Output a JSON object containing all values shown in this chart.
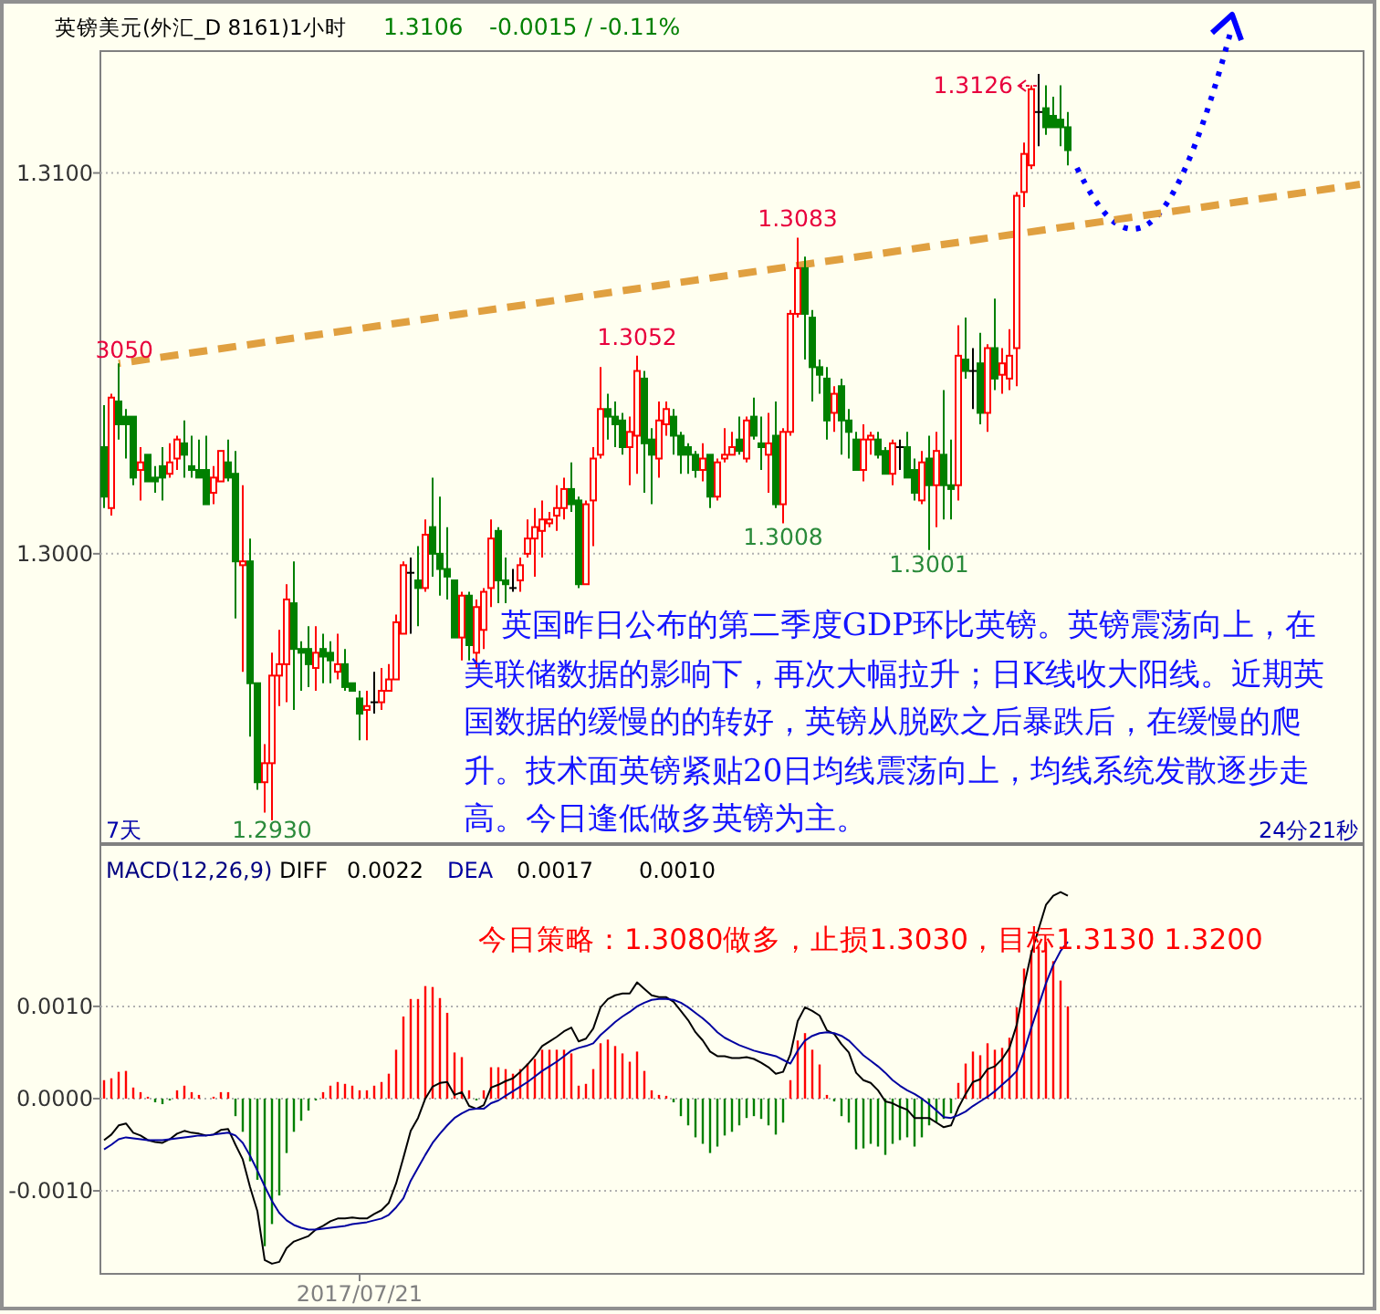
{
  "chart_data": [
    {
      "type": "candlestick",
      "title": "英镑美元(外汇_D 8161)1小时",
      "categories": [
        null,
        null,
        null,
        null,
        null,
        null,
        null,
        null,
        null,
        null,
        null,
        null,
        null,
        null,
        null,
        null,
        null,
        null,
        null,
        null,
        null,
        null,
        null,
        null,
        null,
        null,
        null,
        null,
        null,
        null,
        null,
        null,
        null,
        null,
        null,
        null,
        null,
        null,
        null,
        null,
        null,
        null,
        null,
        null,
        null,
        null,
        null,
        null,
        null,
        null,
        null,
        null,
        null,
        null,
        null,
        null,
        null,
        null,
        null,
        null,
        null,
        null,
        null,
        null,
        null,
        null,
        null,
        null,
        null,
        null,
        null,
        null,
        null,
        null,
        null,
        null,
        null,
        null,
        null,
        null,
        null,
        null,
        null,
        null,
        null,
        null,
        null,
        null,
        null,
        null,
        null,
        null,
        null,
        null,
        null,
        null,
        null,
        null,
        null,
        null,
        null,
        null,
        null,
        null,
        null,
        null,
        null,
        null,
        null,
        null,
        null,
        null,
        null,
        null,
        null,
        null,
        null,
        null,
        null,
        null,
        null,
        null,
        null,
        null,
        null,
        null,
        null,
        null,
        null,
        null,
        null,
        null,
        null,
        null,
        null,
        null,
        null,
        null,
        null,
        null,
        null,
        null,
        null,
        null,
        null,
        null,
        null,
        null,
        null,
        null,
        null,
        null,
        null,
        null,
        null,
        null,
        null,
        null,
        null,
        null,
        null,
        null,
        null,
        null,
        null,
        null,
        null,
        null,
        null,
        null,
        null,
        null,
        null
      ],
      "ohlc": [
        [
          1.3028,
          1.3039,
          1.3012,
          1.3015
        ],
        [
          1.3012,
          1.3042,
          1.301,
          1.3041
        ],
        [
          1.304,
          1.305,
          1.303,
          1.3034
        ],
        [
          1.3036,
          1.3038,
          1.3025,
          1.3034
        ],
        [
          1.3036,
          1.3036,
          1.3018,
          1.302
        ],
        [
          1.3022,
          1.3028,
          1.3014,
          1.3024
        ],
        [
          1.3026,
          1.3026,
          1.3019,
          1.3019
        ],
        [
          1.302,
          1.3023,
          1.3016,
          1.3019
        ],
        [
          1.3023,
          1.3028,
          1.3014,
          1.302
        ],
        [
          1.3021,
          1.3029,
          1.302,
          1.3024
        ],
        [
          1.3025,
          1.3031,
          1.3022,
          1.303
        ],
        [
          1.3029,
          1.3035,
          1.302,
          1.3026
        ],
        [
          1.3023,
          1.3031,
          1.302,
          1.3022
        ],
        [
          1.3022,
          1.303,
          1.302,
          1.302
        ],
        [
          1.3022,
          1.3031,
          1.3013,
          1.3013
        ],
        [
          1.3016,
          1.3023,
          1.3013,
          1.302
        ],
        [
          1.3019,
          1.3027,
          1.3019,
          1.3027
        ],
        [
          1.3024,
          1.303,
          1.3019,
          1.302
        ],
        [
          1.3021,
          1.3027,
          1.2983,
          1.2998
        ],
        [
          1.2997,
          1.3018,
          1.2969,
          1.2998
        ],
        [
          1.2998,
          1.3004,
          1.2952,
          1.2966
        ],
        [
          1.2966,
          1.2966,
          1.2938,
          1.294
        ],
        [
          1.294,
          1.295,
          1.2932,
          1.2945
        ],
        [
          1.2945,
          1.2974,
          1.293,
          1.2968
        ],
        [
          1.2968,
          1.298,
          1.296,
          1.2971
        ],
        [
          1.2971,
          1.2992,
          1.2961,
          1.2988
        ],
        [
          1.2987,
          1.2998,
          1.2959,
          1.2975
        ],
        [
          1.2975,
          1.2977,
          1.2964,
          1.2974
        ],
        [
          1.2975,
          1.2981,
          1.2965,
          1.2971
        ],
        [
          1.297,
          1.2981,
          1.2964,
          1.2974
        ],
        [
          1.2975,
          1.2979,
          1.2966,
          1.2973
        ],
        [
          1.2974,
          1.2977,
          1.2966,
          1.2972
        ],
        [
          1.2969,
          1.2979,
          1.2967,
          1.2971
        ],
        [
          1.2971,
          1.2975,
          1.2964,
          1.2965
        ],
        [
          1.2966,
          1.2966,
          1.2964,
          1.2964
        ],
        [
          1.2962,
          1.2964,
          1.2951,
          1.2958
        ],
        [
          1.2959,
          1.2964,
          1.2951,
          1.296
        ],
        [
          1.2961,
          1.2969,
          1.2958,
          1.2961
        ],
        [
          1.2961,
          1.297,
          1.2959,
          1.2964
        ],
        [
          1.2964,
          1.2971,
          1.2964,
          1.2967
        ],
        [
          1.2967,
          1.2984,
          1.2967,
          1.2982
        ],
        [
          1.2979,
          1.2998,
          1.2979,
          1.2997
        ],
        [
          1.2995,
          1.2999,
          1.2979,
          1.2995
        ],
        [
          1.2993,
          1.3002,
          1.2981,
          1.2991
        ],
        [
          1.2991,
          1.3009,
          1.299,
          1.3005
        ],
        [
          1.3007,
          1.302,
          1.2994,
          1.3
        ],
        [
          1.3,
          1.3015,
          1.2989,
          1.2996
        ],
        [
          1.2996,
          1.3007,
          1.2988,
          1.2994
        ],
        [
          1.2993,
          1.2993,
          1.2978,
          1.2978
        ],
        [
          1.2978,
          1.299,
          1.2972,
          1.2989
        ],
        [
          1.2989,
          1.299,
          1.2972,
          1.2976
        ],
        [
          1.2974,
          1.2988,
          1.297,
          1.2986
        ],
        [
          1.298,
          1.2991,
          1.2975,
          1.299
        ],
        [
          1.2991,
          1.3009,
          1.2986,
          1.3004
        ],
        [
          1.3006,
          1.3007,
          1.2987,
          1.2993
        ],
        [
          1.2993,
          1.2999,
          1.2987,
          1.2992
        ],
        [
          1.2991,
          1.2996,
          1.299,
          1.2991
        ],
        [
          1.2993,
          1.2999,
          1.299,
          1.2997
        ],
        [
          1.3,
          1.3009,
          1.2999,
          1.3004
        ],
        [
          1.3004,
          1.3012,
          1.2994,
          1.3007
        ],
        [
          1.3006,
          1.3014,
          1.2999,
          1.3009
        ],
        [
          1.3008,
          1.3011,
          1.3007,
          1.3009
        ],
        [
          1.301,
          1.3018,
          1.3006,
          1.3012
        ],
        [
          1.3012,
          1.302,
          1.3009,
          1.3017
        ],
        [
          1.3017,
          1.3024,
          1.3011,
          1.3013
        ],
        [
          1.3014,
          1.3015,
          1.2991,
          1.2992
        ],
        [
          1.2992,
          1.3014,
          1.2992,
          1.3013
        ],
        [
          1.3014,
          1.3028,
          1.3002,
          1.3025
        ],
        [
          1.3026,
          1.3049,
          1.3025,
          1.3038
        ],
        [
          1.3038,
          1.3042,
          1.303,
          1.3036
        ],
        [
          1.3036,
          1.304,
          1.3028,
          1.3034
        ],
        [
          1.3035,
          1.3037,
          1.3026,
          1.3028
        ],
        [
          1.3028,
          1.3036,
          1.3018,
          1.3032
        ],
        [
          1.3031,
          1.3052,
          1.3021,
          1.3048
        ],
        [
          1.3046,
          1.3048,
          1.3016,
          1.3029
        ],
        [
          1.303,
          1.3033,
          1.3013,
          1.3026
        ],
        [
          1.3025,
          1.304,
          1.302,
          1.3035
        ],
        [
          1.3034,
          1.304,
          1.3031,
          1.3038
        ],
        [
          1.3036,
          1.3038,
          1.3026,
          1.3031
        ],
        [
          1.3031,
          1.3032,
          1.3021,
          1.3026
        ],
        [
          1.3028,
          1.3029,
          1.3021,
          1.3026
        ],
        [
          1.3026,
          1.3027,
          1.302,
          1.3022
        ],
        [
          1.3022,
          1.3029,
          1.3019,
          1.3025
        ],
        [
          1.3026,
          1.3026,
          1.3012,
          1.3015
        ],
        [
          1.3015,
          1.3025,
          1.3014,
          1.3024
        ],
        [
          1.3025,
          1.3033,
          1.3024,
          1.3026
        ],
        [
          1.3026,
          1.3032,
          1.3026,
          1.3028
        ],
        [
          1.303,
          1.3036,
          1.3026,
          1.3027
        ],
        [
          1.3025,
          1.3036,
          1.3024,
          1.3035
        ],
        [
          1.3036,
          1.3041,
          1.303,
          1.3031
        ],
        [
          1.3029,
          1.3036,
          1.3022,
          1.3028
        ],
        [
          1.3026,
          1.3037,
          1.3016,
          1.3029
        ],
        [
          1.3031,
          1.304,
          1.3012,
          1.3013
        ],
        [
          1.3013,
          1.3033,
          1.3008,
          1.3032
        ],
        [
          1.3032,
          1.3064,
          1.3031,
          1.3063
        ],
        [
          1.3063,
          1.3083,
          1.3062,
          1.3075
        ],
        [
          1.3075,
          1.3078,
          1.3051,
          1.3063
        ],
        [
          1.3062,
          1.3064,
          1.304,
          1.3049
        ],
        [
          1.3049,
          1.3051,
          1.3042,
          1.3047
        ],
        [
          1.3046,
          1.3049,
          1.303,
          1.3035
        ],
        [
          1.3037,
          1.3044,
          1.3032,
          1.3042
        ],
        [
          1.3044,
          1.3046,
          1.3026,
          1.3035
        ],
        [
          1.3035,
          1.3038,
          1.3025,
          1.3032
        ],
        [
          1.303,
          1.3032,
          1.3022,
          1.3022
        ],
        [
          1.3022,
          1.3034,
          1.3019,
          1.303
        ],
        [
          1.303,
          1.3032,
          1.3026,
          1.3031
        ],
        [
          1.303,
          1.3032,
          1.3025,
          1.3026
        ],
        [
          1.3027,
          1.3028,
          1.3021,
          1.3021
        ],
        [
          1.3021,
          1.303,
          1.3018,
          1.3029
        ],
        [
          1.3028,
          1.303,
          1.3022,
          1.3028
        ],
        [
          1.3028,
          1.3032,
          1.302,
          1.302
        ],
        [
          1.3022,
          1.3025,
          1.3014,
          1.3016
        ],
        [
          1.3014,
          1.3027,
          1.3013,
          1.3024
        ],
        [
          1.3025,
          1.3031,
          1.3001,
          1.3018
        ],
        [
          1.3018,
          1.3032,
          1.3007,
          1.3027
        ],
        [
          1.3026,
          1.3043,
          1.3009,
          1.3018
        ],
        [
          1.3018,
          1.303,
          1.3009,
          1.3017
        ],
        [
          1.3018,
          1.306,
          1.3014,
          1.3052
        ],
        [
          1.3051,
          1.3062,
          1.3046,
          1.3048
        ],
        [
          1.3048,
          1.3054,
          1.3038,
          1.3048
        ],
        [
          1.305,
          1.3058,
          1.3034,
          1.3037
        ],
        [
          1.3037,
          1.3055,
          1.3032,
          1.3054
        ],
        [
          1.3054,
          1.3067,
          1.3043,
          1.3046
        ],
        [
          1.3047,
          1.3054,
          1.3042,
          1.305
        ],
        [
          1.3046,
          1.3059,
          1.3043,
          1.3052
        ],
        [
          1.3054,
          1.3095,
          1.3044,
          1.3094
        ],
        [
          1.3095,
          1.3108,
          1.3091,
          1.3105
        ],
        [
          1.3102,
          1.3123,
          1.3101,
          1.3122
        ],
        [
          1.3116,
          1.3126,
          1.3107,
          1.3116
        ],
        [
          1.3117,
          1.3123,
          1.311,
          1.3112
        ],
        [
          1.3115,
          1.312,
          1.3112,
          1.3112
        ],
        [
          1.3114,
          1.3123,
          1.3107,
          1.3112
        ],
        [
          1.3112,
          1.3116,
          1.3102,
          1.3106
        ],
        null,
        null,
        null,
        null,
        null,
        null,
        null,
        null,
        null,
        null,
        null,
        null,
        null,
        null,
        null,
        null,
        null,
        null,
        null,
        null,
        null,
        null,
        null,
        null,
        null,
        null,
        null,
        null,
        null,
        null,
        null,
        null,
        null,
        null,
        null,
        null,
        null,
        null,
        null,
        null
      ],
      "ylim": [
        1.2924,
        1.3132
      ],
      "yticks": [
        {
          "value": 1.31,
          "label": "1.3100"
        },
        {
          "value": 1.3,
          "label": "1.3000"
        }
      ],
      "grid": "y",
      "tick_labels": "y",
      "series": [
        {
          "type": "line",
          "color": "#e0a040",
          "line_style": "dashed",
          "values": [
            null,
            null,
            1.305,
            null,
            null,
            null,
            null,
            null,
            null,
            null,
            null,
            null,
            null,
            null,
            null,
            null,
            null,
            null,
            null,
            null,
            null,
            null,
            null,
            null,
            null,
            null,
            null,
            null,
            null,
            null,
            null,
            null,
            null,
            null,
            null,
            null,
            null,
            null,
            null,
            null,
            null,
            null,
            null,
            null,
            null,
            null,
            null,
            null,
            null,
            null,
            null,
            null,
            null,
            null,
            null,
            null,
            null,
            null,
            null,
            null,
            null,
            null,
            null,
            null,
            null,
            null,
            null,
            null,
            null,
            null,
            null,
            null,
            null,
            null,
            null,
            null,
            null,
            null,
            null,
            null,
            null,
            null,
            null,
            null,
            null,
            null,
            null,
            null,
            null,
            null,
            null,
            null,
            null,
            null,
            null,
            null,
            null,
            null,
            null,
            null,
            null,
            null,
            null,
            null,
            null,
            null,
            null,
            null,
            null,
            null,
            null,
            null,
            null,
            null,
            null,
            null,
            null,
            null,
            null,
            null,
            null,
            null,
            null,
            null,
            null,
            null,
            null,
            null,
            null,
            null,
            null,
            null,
            null,
            null,
            null,
            null,
            null,
            null,
            null,
            null,
            null,
            null,
            null,
            null,
            null,
            null,
            null,
            null,
            null,
            null,
            null,
            null,
            null,
            null,
            null,
            null,
            null,
            null,
            null,
            null,
            null,
            null,
            null,
            null,
            null,
            null,
            null,
            null,
            null,
            null,
            null,
            null,
            1.3097
          ]
        }
      ],
      "annotations": [
        {
          "text": "1.3052",
          "y": 1.3052
        },
        {
          "text": "1.3083",
          "y": 1.3083
        },
        {
          "text": "1.3008",
          "y": 1.3008
        },
        {
          "text": "1.3001",
          "y": 1.3001
        },
        {
          "text": "1.2930",
          "y": 1.293
        },
        "3050",
        "1.3126",
        "1.3106",
        "-0.0015 / -0.11%",
        "7天",
        "24分21秒",
        "英国昨日公布的第二季度GDP环比英镑。英镑震荡向上，在美联储数据的影响下，再次大幅拉升；日K线收大阳线。近期英国数据的缓慢的的转好，英镑从脱欧之后暴跌后，在缓慢的爬升。技术面英镑紧贴20日均线震荡向上，均线系统发散逐步走高。今日逢低做多英镑为主。"
      ]
    },
    {
      "type": "bar",
      "title": "MACD(12,26,9)",
      "categories": [
        null,
        null,
        null,
        null,
        null,
        null,
        null,
        null,
        null,
        null,
        null,
        null,
        null,
        null,
        null,
        null,
        null,
        null,
        null,
        null,
        null,
        null,
        null,
        null,
        null,
        null,
        null,
        null,
        null,
        null,
        null,
        null,
        null,
        null,
        null,
        "2017/07/21",
        null,
        null,
        null,
        null,
        null,
        null,
        null,
        null,
        null,
        null,
        null,
        null,
        null,
        null,
        null,
        null,
        null,
        null,
        null,
        null,
        null,
        null,
        null,
        null,
        null,
        null,
        null,
        null,
        null,
        null,
        null,
        null,
        null,
        null,
        null,
        null,
        null,
        null,
        null,
        null,
        null,
        null,
        null,
        null,
        null,
        null,
        null,
        null,
        null,
        null,
        null,
        null,
        null,
        null,
        null,
        null,
        null,
        null,
        null,
        null,
        null,
        null,
        null,
        null,
        null,
        null,
        null,
        null,
        null,
        null,
        null,
        null,
        null,
        null,
        null,
        null,
        null,
        null,
        null,
        null,
        null,
        null,
        null,
        null,
        null,
        null,
        null,
        null,
        null,
        null,
        null,
        null,
        null,
        null,
        null,
        null,
        null,
        null,
        null,
        null,
        null,
        null,
        null,
        null,
        null,
        null,
        null,
        null,
        null,
        null,
        null,
        null,
        null,
        null,
        null,
        null,
        null,
        null,
        null,
        null,
        null,
        null,
        null,
        null,
        null,
        null,
        null,
        null,
        null,
        null,
        null,
        null,
        null,
        null,
        null,
        null,
        null
      ],
      "ylim": [
        -0.0019,
        0.00275
      ],
      "yticks": [
        {
          "value": 0.001,
          "label": "0.0010"
        },
        {
          "value": 0,
          "label": "0.0000"
        },
        {
          "value": -0.001,
          "label": "-0.0010"
        }
      ],
      "grid": "y",
      "legend": "top left",
      "series": [
        {
          "type": "bar",
          "colors": [
            "#ff0000",
            "#ff0000",
            "#ff0000",
            "#ff0000",
            "#ff0000",
            "#ff0000",
            "#ff0000",
            "#008000",
            "#008000",
            "#008000",
            "#ff0000",
            "#ff0000",
            "#ff0000",
            "#ff0000",
            null,
            "#ff0000",
            "#ff0000",
            "#ff0000",
            "#008000",
            "#008000",
            "#008000",
            "#008000",
            "#008000",
            "#008000",
            "#008000",
            "#008000",
            "#008000",
            "#008000",
            "#008000",
            "#008000",
            "#ff0000",
            "#ff0000",
            "#ff0000",
            "#ff0000",
            "#ff0000",
            "#ff0000",
            "#ff0000",
            "#ff0000",
            "#ff0000",
            "#ff0000",
            "#ff0000",
            "#ff0000",
            "#ff0000",
            "#ff0000",
            "#ff0000",
            "#ff0000",
            "#ff0000",
            "#ff0000",
            "#ff0000",
            "#ff0000",
            "#ff0000",
            "#008000",
            "#ff0000",
            "#ff0000",
            "#ff0000",
            "#ff0000",
            "#ff0000",
            "#ff0000",
            "#ff0000",
            "#ff0000",
            "#ff0000",
            "#ff0000",
            "#ff0000",
            "#ff0000",
            "#ff0000",
            "#ff0000",
            "#ff0000",
            "#ff0000",
            "#ff0000",
            "#ff0000",
            "#ff0000",
            "#ff0000",
            "#ff0000",
            "#ff0000",
            "#ff0000",
            "#ff0000",
            "#ff0000",
            "#ff0000",
            "#008000",
            "#008000",
            "#008000",
            "#008000",
            "#008000",
            "#008000",
            "#008000",
            "#008000",
            "#008000",
            "#008000",
            "#008000",
            "#008000",
            "#008000",
            "#008000",
            "#008000",
            "#008000",
            "#ff0000",
            "#ff0000",
            "#ff0000",
            "#ff0000",
            "#ff0000",
            "#ff0000",
            "#008000",
            "#008000",
            "#008000",
            "#008000",
            "#008000",
            "#008000",
            "#008000",
            "#008000",
            "#008000",
            "#008000",
            "#008000",
            "#008000",
            "#008000",
            "#008000",
            "#008000",
            "#008000",
            "#008000",
            "#ff0000",
            "#ff0000",
            "#ff0000",
            "#ff0000",
            "#ff0000",
            "#ff0000",
            "#ff0000",
            "#ff0000",
            "#ff0000",
            "#ff0000",
            "#ff0000",
            "#ff0000",
            "#ff0000",
            "#ff0000",
            "#ff0000",
            "#ff0000",
            null,
            null,
            null,
            null,
            null,
            null,
            null,
            null,
            null,
            null,
            null,
            null,
            null,
            null,
            null,
            null,
            null,
            null,
            null,
            null,
            null,
            null,
            null,
            null,
            null,
            null,
            null,
            null,
            null,
            null,
            null,
            null,
            null,
            null,
            null,
            null,
            null,
            null,
            null,
            null
          ],
          "values": [
            0.0002,
            0.00022,
            0.00029,
            0.0003,
            0.00012,
            7e-05,
            2e-05,
            -4e-05,
            -6e-05,
            -2e-05,
            9e-05,
            0.00014,
            7e-05,
            4e-05,
            null,
            2e-05,
            7e-05,
            7e-05,
            -0.00019,
            -0.00036,
            -0.00068,
            -0.00088,
            -0.0016,
            -0.00136,
            -0.00105,
            -0.00059,
            -0.00036,
            -0.00024,
            -0.00013,
            -2e-05,
            7e-05,
            0.00014,
            0.00018,
            0.00016,
            0.00014,
            9e-05,
            9e-05,
            0.00014,
            0.00018,
            0.00027,
            0.00053,
            0.00089,
            0.00108,
            0.00108,
            0.00122,
            0.00121,
            0.00109,
            0.00093,
            0.0005,
            0.00045,
            9e-05,
            -2e-05,
            9e-05,
            0.00034,
            0.00034,
            0.00032,
            0.00027,
            0.00032,
            0.00038,
            0.00043,
            0.00053,
            0.00053,
            0.00053,
            0.00053,
            0.00049,
            0.00014,
            0.00016,
            0.00032,
            0.0006,
            0.00064,
            0.00057,
            0.00049,
            0.0004,
            0.00051,
            0.0003,
            9e-05,
            4e-05,
            3e-05,
            -4e-05,
            -0.00019,
            -0.00029,
            -0.00042,
            -0.00049,
            -0.00059,
            -0.00052,
            -0.0004,
            -0.00036,
            -0.00029,
            -0.00021,
            -0.00019,
            -0.00022,
            -0.00029,
            -0.00039,
            -0.00026,
            0.0002,
            0.00063,
            0.00071,
            0.00053,
            0.00037,
            4e-05,
            -3e-05,
            -0.00019,
            -0.00026,
            -0.00055,
            -0.00054,
            -0.00049,
            -0.00052,
            -0.00061,
            -0.00049,
            -0.00045,
            -0.00042,
            -0.00052,
            -0.00042,
            -0.00029,
            -0.00026,
            -0.00022,
            -0.00016,
            0.00017,
            0.00038,
            0.00051,
            0.00047,
            0.0006,
            0.00053,
            0.00055,
            0.00066,
            0.00099,
            0.00141,
            0.00161,
            0.00165,
            0.0017,
            0.00149,
            0.00128,
            0.001,
            null,
            null,
            null,
            null,
            null,
            null,
            null,
            null,
            null,
            null,
            null,
            null,
            null,
            null,
            null,
            null,
            null,
            null,
            null,
            null,
            null,
            null,
            null,
            null,
            null,
            null,
            null,
            null,
            null,
            null,
            null,
            null,
            null,
            null,
            null,
            null,
            null,
            null,
            null,
            null
          ]
        },
        {
          "type": "line",
          "name": "DIFF",
          "color": "#000000",
          "values": [
            -0.00045,
            -0.00039,
            -0.00029,
            -0.00027,
            -0.00037,
            -0.0004,
            -0.00045,
            -0.00047,
            -0.00048,
            -0.00044,
            -0.00038,
            -0.00035,
            -0.00037,
            -0.00038,
            -0.0004,
            -0.00039,
            -0.00034,
            -0.00033,
            -0.0005,
            -0.00066,
            -0.00096,
            -0.00122,
            -0.00175,
            -0.00179,
            -0.00177,
            -0.00162,
            -0.00155,
            -0.00152,
            -0.00149,
            -0.00142,
            -0.00138,
            -0.00133,
            -0.0013,
            -0.0013,
            -0.00129,
            -0.0013,
            -0.0013,
            -0.00125,
            -0.00121,
            -0.00113,
            -0.00092,
            -0.00064,
            -0.00035,
            -0.00021,
            0.0,
            0.00013,
            0.00017,
            0.00018,
            4e-05,
            7e-05,
            -8e-05,
            -0.00011,
            -7e-05,
            0.00012,
            0.00015,
            0.00019,
            0.00022,
            0.00029,
            0.00037,
            0.00046,
            0.00057,
            0.00062,
            0.00067,
            0.00073,
            0.00077,
            0.00062,
            0.00065,
            0.00076,
            0.00099,
            0.00108,
            0.00112,
            0.00114,
            0.00114,
            0.00126,
            0.00119,
            0.00112,
            0.0011,
            0.0011,
            0.00105,
            0.00095,
            0.00085,
            0.00072,
            0.00063,
            0.00051,
            0.00046,
            0.00046,
            0.00044,
            0.00044,
            0.00045,
            0.00043,
            0.00039,
            0.00034,
            0.00027,
            0.00029,
            0.00048,
            0.00084,
            0.00099,
            0.00095,
            0.0009,
            0.00074,
            0.0007,
            0.00059,
            0.0005,
            0.00028,
            0.0002,
            0.00017,
            9e-05,
            -3e-05,
            -5e-05,
            -9e-05,
            -0.00012,
            -0.00021,
            -0.00021,
            -0.00021,
            -0.00026,
            -0.00031,
            -0.00029,
            -0.0001,
            5e-05,
            0.00018,
            0.00021,
            0.00032,
            0.00035,
            0.00043,
            0.00055,
            0.0008,
            0.00122,
            0.00158,
            0.00184,
            0.0021,
            0.0022,
            0.00224,
            0.0022,
            null,
            null,
            null,
            null,
            null,
            null,
            null,
            null,
            null,
            null,
            null,
            null,
            null,
            null,
            null,
            null,
            null,
            null,
            null,
            null,
            null,
            null,
            null,
            null,
            null,
            null,
            null,
            null,
            null,
            null,
            null,
            null,
            null,
            null,
            null,
            null,
            null,
            null,
            null,
            null
          ]
        },
        {
          "type": "line",
          "name": "DEA",
          "color": "#0000a0",
          "values": [
            -0.00055,
            -0.0005,
            -0.00044,
            -0.00042,
            -0.00043,
            -0.00044,
            -0.00045,
            -0.00045,
            -0.00045,
            -0.00044,
            -0.00043,
            -0.00042,
            -0.00041,
            -0.0004,
            -0.0004,
            -0.00039,
            -0.00038,
            -0.00037,
            -0.0004,
            -0.00048,
            -0.00062,
            -0.00078,
            -0.00095,
            -0.00111,
            -0.00124,
            -0.00132,
            -0.00137,
            -0.0014,
            -0.00142,
            -0.00142,
            -0.00141,
            -0.0014,
            -0.00139,
            -0.00138,
            -0.00136,
            -0.00135,
            -0.00134,
            -0.00132,
            -0.0013,
            -0.00126,
            -0.00118,
            -0.00108,
            -0.00089,
            -0.00075,
            -0.00061,
            -0.00048,
            -0.00038,
            -0.00029,
            -0.00021,
            -0.00016,
            -0.00012,
            -0.00011,
            -0.00011,
            -5e-05,
            -2e-05,
            3e-05,
            8e-05,
            0.00013,
            0.00018,
            0.00024,
            0.0003,
            0.00035,
            0.0004,
            0.00046,
            0.00052,
            0.00055,
            0.00057,
            0.0006,
            0.00069,
            0.00076,
            0.00083,
            0.00089,
            0.00094,
            0.001,
            0.00104,
            0.00107,
            0.00108,
            0.00108,
            0.00107,
            0.00104,
            0.00099,
            0.00093,
            0.00087,
            0.0008,
            0.00072,
            0.00066,
            0.00062,
            0.00058,
            0.00055,
            0.00052,
            0.0005,
            0.00048,
            0.00046,
            0.00042,
            0.00038,
            0.00052,
            0.00063,
            0.00068,
            0.00071,
            0.00072,
            0.00071,
            0.00068,
            0.00063,
            0.00055,
            0.00047,
            0.00041,
            0.00035,
            0.00028,
            0.0002,
            0.00014,
            9e-05,
            5e-05,
            0.0,
            -6e-05,
            -0.00013,
            -0.0002,
            -0.00021,
            -0.00018,
            -0.00014,
            -8e-05,
            -3e-05,
            2e-05,
            8e-05,
            0.00015,
            0.00022,
            0.0003,
            0.00051,
            0.00077,
            0.00101,
            0.00125,
            0.00145,
            0.0016,
            0.0017,
            null,
            null,
            null,
            null,
            null,
            null,
            null,
            null,
            null,
            null,
            null,
            null,
            null,
            null,
            null,
            null,
            null,
            null,
            null,
            null,
            null,
            null,
            null,
            null,
            null,
            null,
            null,
            null,
            null,
            null,
            null,
            null,
            null,
            null,
            null,
            null,
            null,
            null,
            null,
            null
          ]
        }
      ],
      "annotations": [
        "0.0022",
        "0.0017",
        "0.0010",
        "今日策略：1.3080做多，止损1.3030，目标1.3130  1.3200"
      ]
    }
  ]
}
